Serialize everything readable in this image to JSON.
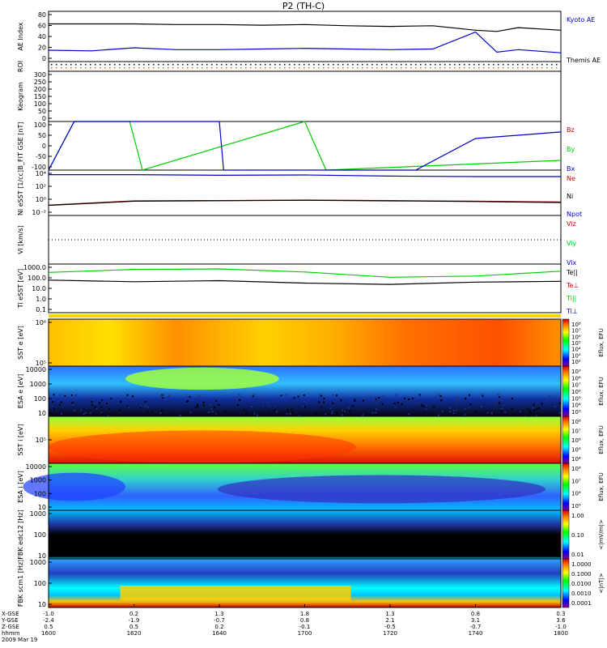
{
  "title": "P2 (TH-C)",
  "date": "2009 Mar 19",
  "colors": {
    "red": "#cc0000",
    "green": "#00cc00",
    "blue": "#0000cc",
    "black": "#000000",
    "orange": "#ff8c00"
  },
  "panels": [
    {
      "id": "ae",
      "ylabel": "AE Index",
      "ticks": [
        "80",
        "60",
        "40",
        "20",
        "0"
      ],
      "legend": [
        {
          "text": "Kyoto AE",
          "color": "#0000cc"
        },
        {
          "text": "Themis AE",
          "color": "#000000"
        }
      ]
    },
    {
      "id": "roi",
      "ylabel": "ROI",
      "ticks": [],
      "legend": []
    },
    {
      "id": "keogram",
      "ylabel": "Keogram",
      "ticks": [
        "300",
        "250",
        "200",
        "150",
        "100",
        "50",
        "0"
      ],
      "legend": []
    },
    {
      "id": "bfit",
      "ylabel": "B_FIT GSE [nT]",
      "ticks": [
        "100",
        "50",
        "0",
        "-50",
        "-100"
      ],
      "legend": [
        {
          "text": "Bz",
          "color": "#cc0000"
        },
        {
          "text": "By",
          "color": "#00cc00"
        },
        {
          "text": "Bx",
          "color": "#0000cc"
        }
      ]
    },
    {
      "id": "ni",
      "ylabel": "Ni eSST [1/cc]",
      "ticks": [
        "10⁴",
        "10²",
        "10⁰",
        "10⁻²"
      ],
      "legend": [
        {
          "text": "Ne",
          "color": "#cc0000"
        },
        {
          "text": "Ni",
          "color": "#000000"
        },
        {
          "text": "Npot",
          "color": "#0000cc"
        }
      ]
    },
    {
      "id": "vi",
      "ylabel": "Vi [km/s]",
      "ticks": [],
      "legend": [
        {
          "text": "Viz",
          "color": "#cc0000"
        },
        {
          "text": "Viy",
          "color": "#00cc00"
        },
        {
          "text": "Vix",
          "color": "#0000cc"
        }
      ]
    },
    {
      "id": "te",
      "ylabel": "Ti eSST [eV]",
      "ticks": [
        "1000.0",
        "100.0",
        "10.0",
        "1.0",
        "0.1"
      ],
      "legend": [
        {
          "text": "Te||",
          "color": "#000000"
        },
        {
          "text": "Te⊥",
          "color": "#cc0000"
        },
        {
          "text": "Ti||",
          "color": "#00cc00"
        },
        {
          "text": "Ti⊥",
          "color": "#0000cc"
        }
      ]
    },
    {
      "id": "sst_e",
      "ylabel": "SST e [eV]",
      "ticks": [
        "10⁶",
        "10⁵"
      ],
      "legend": [],
      "cbar": {
        "label": "Eflux, EFU",
        "ticks": [
          "10⁸",
          "10⁷",
          "10⁶",
          "10⁵",
          "10⁴",
          "10³",
          "10²"
        ]
      }
    },
    {
      "id": "esa_e",
      "ylabel": "ESA e [eV]",
      "ticks": [
        "10000",
        "1000",
        "100",
        "10"
      ],
      "legend": [],
      "cbar": {
        "label": "Eflux, EFU",
        "ticks": [
          "10⁹",
          "10⁸",
          "10⁷",
          "10⁶",
          "10⁵",
          "10⁴",
          "10³"
        ]
      }
    },
    {
      "id": "sst_i",
      "ylabel": "SST i [eV]",
      "ticks": [
        "10⁵"
      ],
      "legend": [],
      "cbar": {
        "label": "Eflux, EFU",
        "ticks": [
          "10⁸",
          "10⁷",
          "10⁶",
          "10⁵",
          "10⁴"
        ]
      }
    },
    {
      "id": "esa_i",
      "ylabel": "ESA i [eV]",
      "ticks": [
        "10000",
        "1000",
        "100",
        "10"
      ],
      "legend": [],
      "cbar": {
        "label": "Eflux, EFU",
        "ticks": [
          "10⁸",
          "10⁷",
          "10⁶",
          "10⁵"
        ]
      }
    },
    {
      "id": "fbk1",
      "ylabel": "FBK edc12 [Hz]",
      "ticks": [
        "1000",
        "100",
        "10"
      ],
      "legend": [],
      "cbar": {
        "label": "<|mV/m|>",
        "ticks": [
          "1.00",
          "0.10",
          "0.01"
        ]
      }
    },
    {
      "id": "fbk2",
      "ylabel": "FBK scm1 [Hz]",
      "ticks": [
        "1000",
        "100",
        "10"
      ],
      "legend": [],
      "cbar": {
        "label": "<|nT|>",
        "ticks": [
          "1.0000",
          "0.1000",
          "0.0100",
          "0.0010",
          "0.0001"
        ]
      }
    }
  ],
  "xaxis": {
    "rowlabels": [
      "X-GSE",
      "Y-GSE",
      "Z-GSE",
      "hhmm",
      "2009 Mar 19"
    ],
    "columns": [
      [
        "-1.0",
        "-2.4",
        "0.5",
        "1600"
      ],
      [
        "0.2",
        "-1.9",
        "0.5",
        "1620"
      ],
      [
        "1.3",
        "-0.7",
        "0.2",
        "1640"
      ],
      [
        "1.8",
        "0.8",
        "-0.1",
        "1700"
      ],
      [
        "1.3",
        "2.1",
        "-0.5",
        "1720"
      ],
      [
        "0.8",
        "3.1",
        "-0.7",
        "1740"
      ],
      [
        "0.3",
        "3.6",
        "-1.0",
        "1800"
      ]
    ]
  },
  "chart_data": [
    {
      "type": "line",
      "title": "AE Index",
      "xlabel": "hhmm",
      "x": [
        1600,
        1610,
        1620,
        1630,
        1640,
        1650,
        1700,
        1710,
        1720,
        1730,
        1740,
        1745,
        1750,
        1800
      ],
      "ylim": [
        0,
        80
      ],
      "series": [
        {
          "name": "Kyoto AE",
          "values": [
            60,
            60,
            60,
            59,
            59,
            58,
            59,
            57,
            56,
            57,
            50,
            48,
            54,
            50
          ]
        },
        {
          "name": "Themis AE",
          "values": [
            18,
            17,
            22,
            19,
            19,
            20,
            21,
            20,
            19,
            20,
            47,
            15,
            19,
            14
          ]
        }
      ]
    },
    {
      "type": "line",
      "title": "B_FIT GSE",
      "ylim": [
        -100,
        100
      ],
      "series": [
        {
          "name": "Bz",
          "values": []
        },
        {
          "name": "By",
          "values": [
            -100,
            -40,
            100,
            -100,
            100,
            -100,
            -70
          ]
        },
        {
          "name": "Bx",
          "values": [
            -100,
            100,
            -100,
            -100,
            0,
            50,
            57
          ]
        }
      ]
    },
    {
      "type": "line",
      "title": "Ni",
      "ylog": true,
      "series": [
        {
          "name": "Ne",
          "values": []
        },
        {
          "name": "Ni",
          "values": [
            0.2,
            0.9,
            1.0,
            1.2,
            1.0,
            0.8,
            0.6
          ]
        },
        {
          "name": "Npot",
          "values": [
            10000,
            10000,
            8000,
            9000,
            6000,
            5000,
            5000
          ]
        }
      ]
    },
    {
      "type": "line",
      "title": "Ti",
      "ylog": true,
      "ylim": [
        0.1,
        1000
      ],
      "series": [
        {
          "name": "Te||",
          "values": [
            80,
            55,
            70,
            40,
            30,
            50,
            60
          ]
        },
        {
          "name": "Ti||",
          "values": [
            450,
            900,
            1000,
            500,
            150,
            200,
            600
          ]
        }
      ]
    },
    {
      "type": "heatmap",
      "title": "SST e"
    },
    {
      "type": "heatmap",
      "title": "ESA e"
    },
    {
      "type": "heatmap",
      "title": "SST i"
    },
    {
      "type": "heatmap",
      "title": "ESA i"
    },
    {
      "type": "heatmap",
      "title": "FBK edc12"
    },
    {
      "type": "heatmap",
      "title": "FBK scm1"
    }
  ]
}
